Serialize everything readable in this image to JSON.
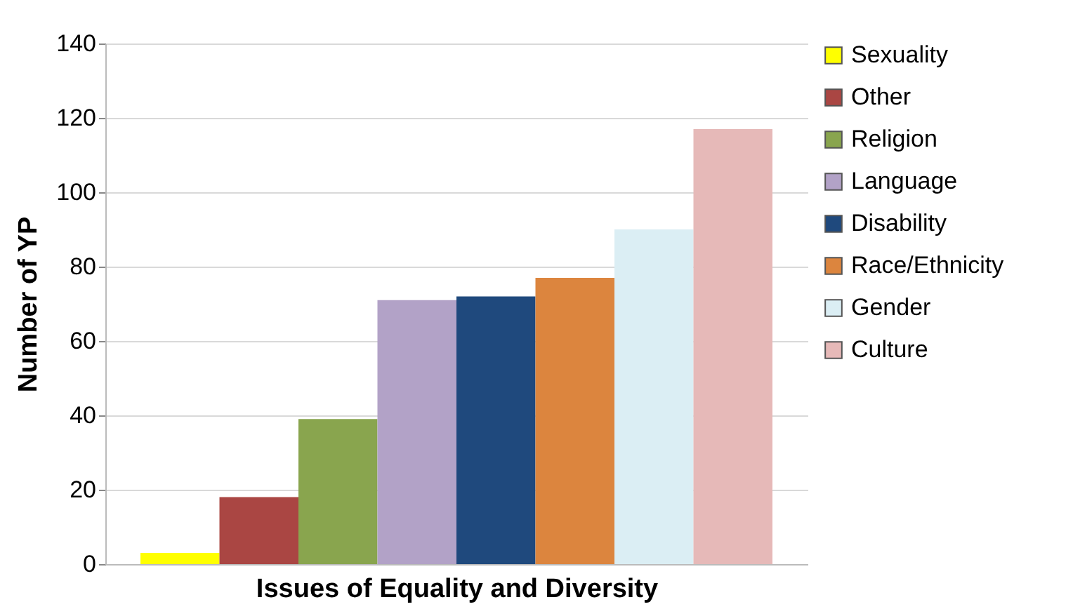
{
  "chart_data": {
    "type": "bar",
    "xlabel": "Issues of Equality and Diversity",
    "ylabel": "Number of YP",
    "categories": [
      null
    ],
    "series": [
      {
        "name": "Sexuality",
        "color": "#ffff00",
        "values": [
          3
        ]
      },
      {
        "name": "Other",
        "color": "#aa4643",
        "values": [
          18
        ]
      },
      {
        "name": "Religion",
        "color": "#89a54e",
        "values": [
          39
        ]
      },
      {
        "name": "Language",
        "color": "#b2a2c7",
        "values": [
          71
        ]
      },
      {
        "name": "Disability",
        "color": "#1f497d",
        "values": [
          72
        ]
      },
      {
        "name": "Race/Ethnicity",
        "color": "#dc853e",
        "values": [
          77
        ]
      },
      {
        "name": "Gender",
        "color": "#dbeef4",
        "values": [
          90
        ]
      },
      {
        "name": "Culture",
        "color": "#e6b9b8",
        "values": [
          117
        ]
      }
    ],
    "ylim": [
      0,
      140
    ],
    "yticks": [
      0,
      20,
      40,
      60,
      80,
      100,
      120,
      140
    ],
    "grid": "y",
    "legend": "right",
    "tick_labels": "y"
  }
}
